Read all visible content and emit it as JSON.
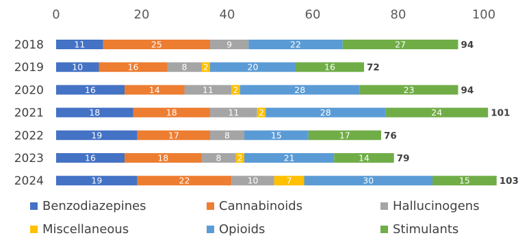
{
  "chart_data": {
    "type": "bar",
    "orientation": "horizontal",
    "stacked": true,
    "title": "",
    "xlabel": "",
    "ylabel": "",
    "xlim": [
      0,
      100
    ],
    "x_ticks": [
      0,
      20,
      40,
      60,
      80,
      100
    ],
    "grid": false,
    "legend_position": "bottom",
    "categories": [
      "2018",
      "2019",
      "2020",
      "2021",
      "2022",
      "2023",
      "2024"
    ],
    "series": [
      {
        "name": "Benzodiazepines",
        "color": "#4472C4",
        "values": [
          11,
          10,
          16,
          18,
          19,
          16,
          19
        ]
      },
      {
        "name": "Cannabinoids",
        "color": "#ED7D31",
        "values": [
          25,
          16,
          14,
          18,
          17,
          18,
          22
        ]
      },
      {
        "name": "Hallucinogens",
        "color": "#A5A5A5",
        "values": [
          9,
          8,
          11,
          11,
          8,
          8,
          10
        ]
      },
      {
        "name": "Miscellaneous",
        "color": "#FFC000",
        "values": [
          0,
          2,
          2,
          2,
          0,
          2,
          7
        ]
      },
      {
        "name": "Opioids",
        "color": "#5B9BD5",
        "values": [
          22,
          20,
          28,
          28,
          15,
          21,
          30
        ]
      },
      {
        "name": "Stimulants",
        "color": "#70AD47",
        "values": [
          27,
          16,
          23,
          24,
          17,
          14,
          15
        ]
      }
    ],
    "totals": [
      94,
      72,
      94,
      101,
      76,
      79,
      103
    ]
  }
}
